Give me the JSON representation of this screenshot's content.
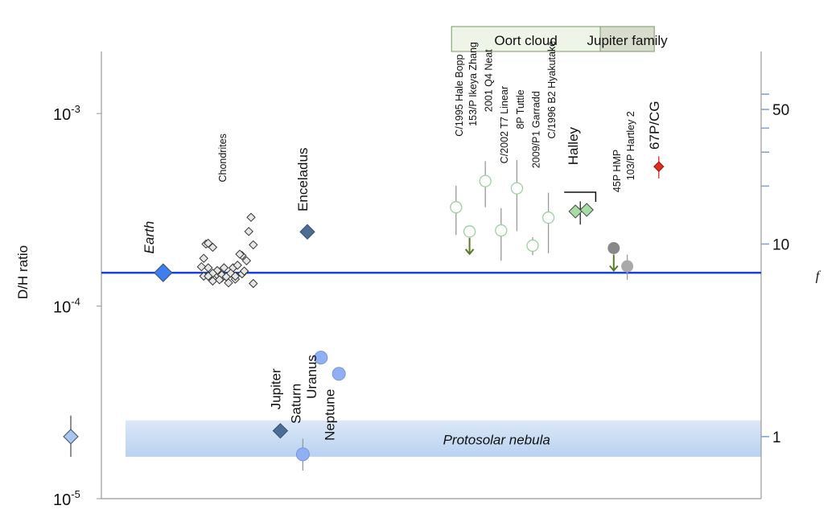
{
  "chart_data": {
    "type": "scatter",
    "ylabel": "D/H ratio",
    "ylabel_right": "f",
    "yscale": "log",
    "ylim": [
      1e-05,
      0.0021
    ],
    "y_ticks": [
      {
        "value": 0.001,
        "base": "10",
        "exp": "-3"
      },
      {
        "value": 0.0001,
        "base": "10",
        "exp": "-4"
      },
      {
        "value": 1e-05,
        "base": "10",
        "exp": "-5"
      }
    ],
    "right_axis": {
      "reference_dh": 2.1e-05,
      "labels": [
        "50",
        "10",
        "1"
      ],
      "label_values": [
        50,
        10,
        1
      ],
      "minor_values": [
        20,
        30,
        40,
        60
      ]
    },
    "earth_line": 0.000149,
    "protosolar_band": {
      "label": "Protosolar nebula",
      "range": [
        1.65e-05,
        2.55e-05
      ]
    },
    "groups": [
      {
        "label": "Oort cloud",
        "color": "#2e8b2e",
        "fill": "#eef5e8",
        "x_range": [
          6.7,
          10.0
        ]
      },
      {
        "label": "Jupiter family",
        "color": "#444444",
        "fill": "#d7dccd",
        "x_range": [
          10.0,
          11.2
        ]
      }
    ],
    "points": [
      {
        "name": "Earth",
        "x": 0.3,
        "value": 0.000149,
        "marker": "diamond",
        "color": "#3d7ff0",
        "size": 11,
        "italic": true,
        "lx": 0.2,
        "ly": 0.00021,
        "horizontal": true
      },
      {
        "name": "Enceladus",
        "x": 3.5,
        "value": 0.000243,
        "marker": "diamond",
        "color": "#4a6e96",
        "size": 9,
        "lx": 3.5,
        "ly": 0.00031
      },
      {
        "name": "Jupiter",
        "x": 2.9,
        "value": 2.25e-05,
        "marker": "diamond",
        "color": "#4a6e96",
        "size": 9,
        "lx": 2.9,
        "ly": 2.9e-05
      },
      {
        "name": "Saturn",
        "x": 3.4,
        "value": 1.7e-05,
        "err": [
          1.4e-05,
          2.05e-05
        ],
        "marker": "circle",
        "color": "#8fb0f2",
        "size": 8,
        "lx": 3.35,
        "ly": 2.45e-05
      },
      {
        "name": "Uranus",
        "x": 3.8,
        "value": 5.4e-05,
        "marker": "circle",
        "color": "#8fb0f2",
        "size": 8,
        "lx": 3.7,
        "ly": 3.3e-05
      },
      {
        "name": "Neptune",
        "x": 4.2,
        "value": 4.45e-05,
        "marker": "circle",
        "color": "#8fb0f2",
        "size": 8,
        "lx": 4.1,
        "ly": 2e-05
      },
      {
        "name": "",
        "x": -1.75,
        "value": 2.1e-05,
        "err": [
          1.65e-05,
          2.7e-05
        ],
        "marker": "diamond",
        "color": "#a9c6ee",
        "size": 9
      },
      {
        "name": "C/1995 Hale Bopp",
        "x": 6.8,
        "value": 0.000326,
        "err": [
          0.000234,
          0.000422
        ],
        "marker": "open-circle",
        "color": "#5ba85b",
        "lx": 6.95,
        "ly": 0.00076
      },
      {
        "name": "153/P Ikeya Zhang",
        "x": 7.1,
        "value": 0.000244,
        "marker": "open-circle",
        "color": "#5ba85b",
        "upper_limit": true,
        "lx": 7.25,
        "ly": 0.00086
      },
      {
        "name": "2001 Q4 Neat",
        "x": 7.45,
        "value": 0.000446,
        "err": [
          0.000326,
          0.000566
        ],
        "marker": "open-circle",
        "color": "#5ba85b",
        "lx": 7.6,
        "ly": 0.00102
      },
      {
        "name": "C/2002 T7 Linear",
        "x": 7.8,
        "value": 0.000247,
        "err": [
          0.000172,
          0.000322
        ],
        "marker": "open-circle",
        "color": "#5ba85b",
        "lx": 7.95,
        "ly": 0.00055
      },
      {
        "name": "8P Tuttle",
        "x": 8.15,
        "value": 0.000409,
        "err": [
          0.000245,
          0.000573
        ],
        "marker": "open-circle",
        "color": "#5ba85b",
        "lx": 8.3,
        "ly": 0.00083
      },
      {
        "name": "2009/P1 Garradd",
        "x": 8.5,
        "value": 0.000206,
        "err": [
          0.000184,
          0.000228
        ],
        "marker": "open-circle",
        "color": "#5ba85b",
        "lx": 8.65,
        "ly": 0.00052
      },
      {
        "name": "C/1996 B2 Hyakutake",
        "x": 8.85,
        "value": 0.000288,
        "err": [
          0.000188,
          0.000388
        ],
        "marker": "open-circle",
        "color": "#5ba85b",
        "lx": 9.0,
        "ly": 0.00074
      },
      {
        "name": "Halley",
        "x": 9.45,
        "value": 0.00031,
        "marker": "light-diamond",
        "color": "#a5dda5",
        "size": 8,
        "lx": 9.5,
        "ly": 0.00054
      },
      {
        "name": "",
        "x": 9.7,
        "value": 0.000316,
        "marker": "light-diamond",
        "color": "#a5dda5",
        "size": 8
      },
      {
        "name": "45P HMP",
        "x": 10.3,
        "value": 0.0002,
        "marker": "filled-circle",
        "color": "#888888",
        "upper_limit": true,
        "lx": 10.45,
        "ly": 0.00039
      },
      {
        "name": "103/P Hartley 2",
        "x": 10.6,
        "value": 0.000161,
        "err": [
          0.000137,
          0.000185
        ],
        "marker": "filled-circle",
        "color": "#a9a9a9",
        "lx": 10.75,
        "ly": 0.00045
      },
      {
        "name": "67P/CG",
        "x": 11.3,
        "value": 0.00053,
        "err": [
          0.00046,
          0.0006
        ],
        "marker": "red-diamond",
        "color": "#e32a20",
        "size": 6,
        "lx": 11.3,
        "ly": 0.00065
      }
    ],
    "chondrites": {
      "label": "Chondrites",
      "label_x": 1.7,
      "label_y": 0.00044,
      "points": [
        [
          1.2,
          0.000177
        ],
        [
          1.3,
          0.000158
        ],
        [
          1.5,
          0.000145
        ],
        [
          1.6,
          0.00014
        ],
        [
          1.75,
          0.000132
        ],
        [
          1.9,
          0.000138
        ],
        [
          1.85,
          0.000158
        ],
        [
          1.4,
          0.000202
        ],
        [
          1.25,
          0.00021
        ],
        [
          1.3,
          0.000212
        ],
        [
          1.15,
          0.00016
        ],
        [
          1.2,
          0.000143
        ],
        [
          1.4,
          0.000135
        ],
        [
          1.6,
          0.000145
        ],
        [
          1.7,
          0.000142
        ],
        [
          1.8,
          0.000148
        ],
        [
          1.9,
          0.000143
        ],
        [
          2.05,
          0.000147
        ],
        [
          2.1,
          0.000152
        ],
        [
          2.15,
          0.000172
        ],
        [
          2.05,
          0.000183
        ],
        [
          2.0,
          0.000186
        ],
        [
          2.3,
          0.000208
        ],
        [
          2.2,
          0.000244
        ],
        [
          2.25,
          0.000289
        ],
        [
          2.3,
          0.000131
        ],
        [
          1.95,
          0.000163
        ],
        [
          1.65,
          0.000158
        ],
        [
          1.5,
          0.000153
        ],
        [
          1.4,
          0.000148
        ],
        [
          1.3,
          0.000143
        ],
        [
          1.55,
          0.000137
        ]
      ]
    },
    "brackets": [
      {
        "x1": 9.2,
        "x2": 9.9,
        "value": 0.00039
      }
    ]
  }
}
